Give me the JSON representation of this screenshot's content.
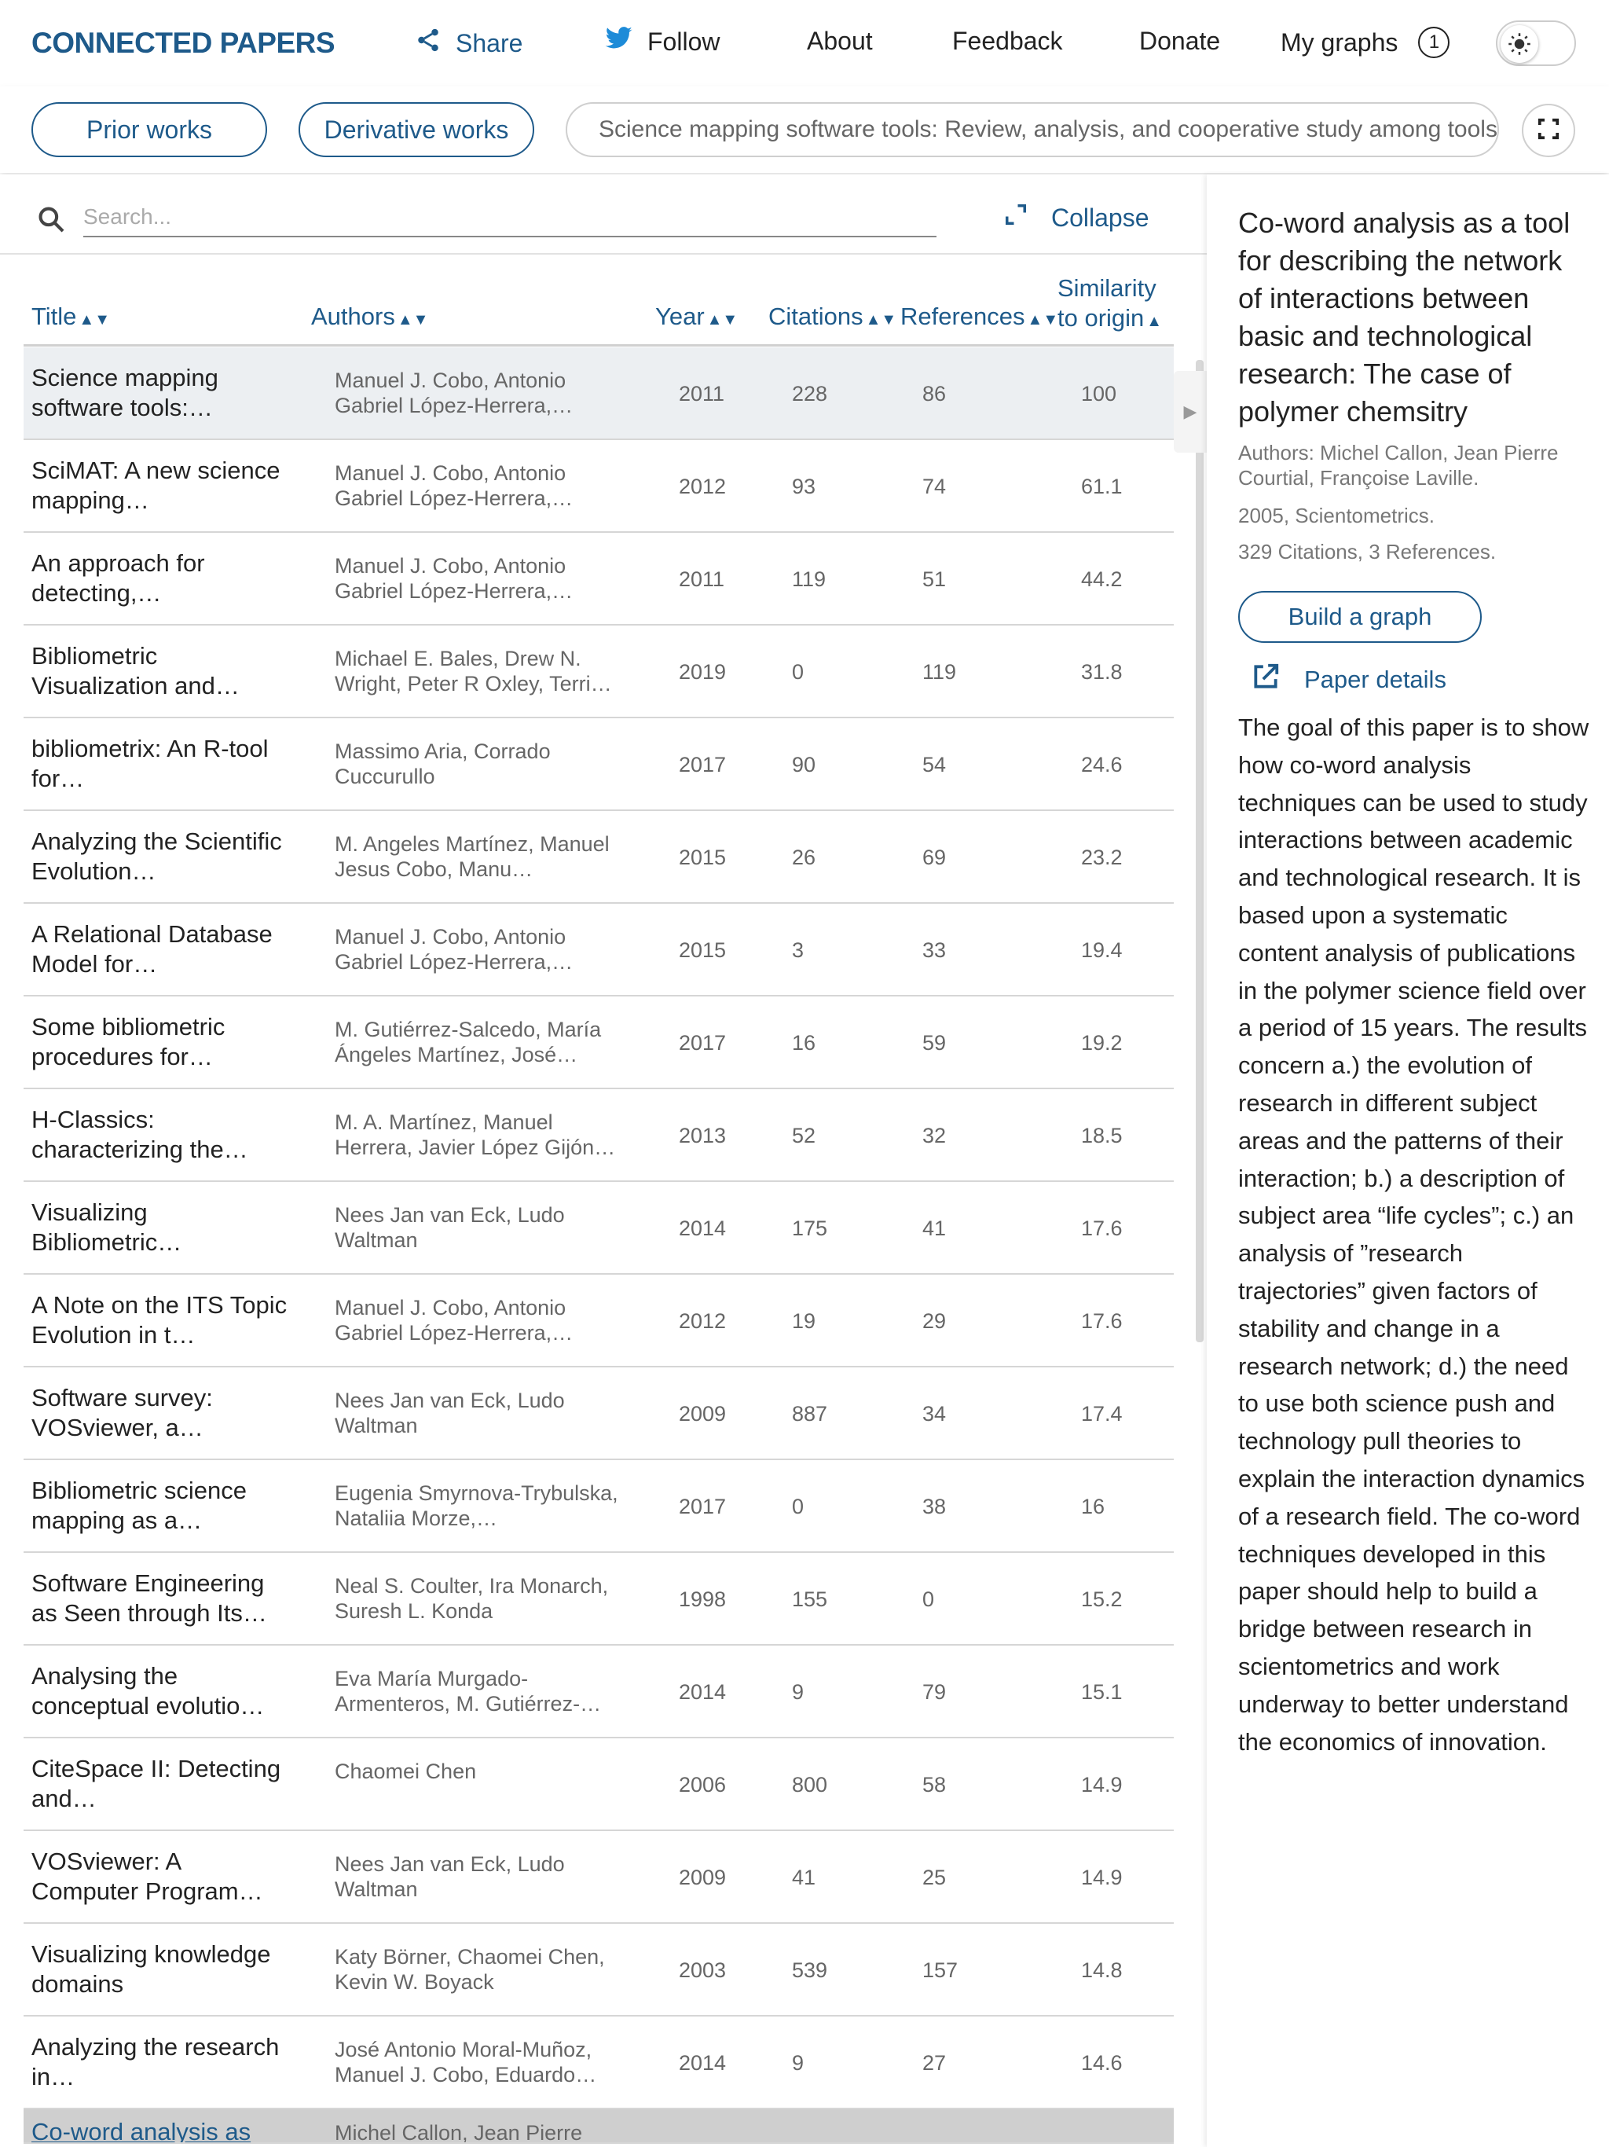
{
  "app": {
    "logo": "CONNECTED PAPERS",
    "nav": {
      "share": "Share",
      "follow": "Follow",
      "about": "About",
      "feedback": "Feedback",
      "donate": "Donate",
      "my_graphs": "My graphs",
      "my_graphs_count": "1"
    },
    "theme_icon": "sun-icon"
  },
  "toolbar": {
    "prior_works": "Prior works",
    "derivative_works": "Derivative works",
    "origin_paper": "Science mapping software tools: Review, analysis, and cooperative study among tools"
  },
  "list": {
    "search_placeholder": "Search...",
    "collapse_label": "Collapse",
    "headers": {
      "title": "Title",
      "authors": "Authors",
      "year": "Year",
      "citations": "Citations",
      "references": "References",
      "similarity_line1": "Similarity",
      "similarity_line2": "to origin"
    },
    "rows": [
      {
        "title": "Science mapping software tools:…",
        "authors": "Manuel J. Cobo, Antonio Gabriel López-Herrera,…",
        "year": "2011",
        "citations": "228",
        "references": "86",
        "similarity": "100"
      },
      {
        "title": "SciMAT: A new science mapping…",
        "authors": "Manuel J. Cobo, Antonio Gabriel López-Herrera,…",
        "year": "2012",
        "citations": "93",
        "references": "74",
        "similarity": "61.1"
      },
      {
        "title": "An approach for detecting,…",
        "authors": "Manuel J. Cobo, Antonio Gabriel López-Herrera,…",
        "year": "2011",
        "citations": "119",
        "references": "51",
        "similarity": "44.2"
      },
      {
        "title": "Bibliometric Visualization and…",
        "authors": "Michael E. Bales, Drew N. Wright, Peter R Oxley, Terri…",
        "year": "2019",
        "citations": "0",
        "references": "119",
        "similarity": "31.8"
      },
      {
        "title": "bibliometrix: An R-tool for…",
        "authors": "Massimo Aria, Corrado Cuccurullo",
        "year": "2017",
        "citations": "90",
        "references": "54",
        "similarity": "24.6"
      },
      {
        "title": "Analyzing the Scientific Evolution…",
        "authors": "M. Angeles Martínez, Manuel Jesus Cobo, Manu…",
        "year": "2015",
        "citations": "26",
        "references": "69",
        "similarity": "23.2"
      },
      {
        "title": "A Relational Database Model for…",
        "authors": "Manuel J. Cobo, Antonio Gabriel López-Herrera,…",
        "year": "2015",
        "citations": "3",
        "references": "33",
        "similarity": "19.4"
      },
      {
        "title": "Some bibliometric procedures for…",
        "authors": "M. Gutiérrez-Salcedo, María Ángeles Martínez, José…",
        "year": "2017",
        "citations": "16",
        "references": "59",
        "similarity": "19.2"
      },
      {
        "title": "H-Classics: characterizing the…",
        "authors": "M. A. Martínez, Manuel Herrera, Javier López Gijón…",
        "year": "2013",
        "citations": "52",
        "references": "32",
        "similarity": "18.5"
      },
      {
        "title": "Visualizing Bibliometric…",
        "authors": "Nees Jan van Eck, Ludo Waltman",
        "year": "2014",
        "citations": "175",
        "references": "41",
        "similarity": "17.6"
      },
      {
        "title": "A Note on the ITS Topic Evolution in t…",
        "authors": "Manuel J. Cobo, Antonio Gabriel López-Herrera,…",
        "year": "2012",
        "citations": "19",
        "references": "29",
        "similarity": "17.6"
      },
      {
        "title": "Software survey: VOSviewer, a…",
        "authors": "Nees Jan van Eck, Ludo Waltman",
        "year": "2009",
        "citations": "887",
        "references": "34",
        "similarity": "17.4"
      },
      {
        "title": "Bibliometric science mapping as a…",
        "authors": "Eugenia Smyrnova-Trybulska, Nataliia Morze,…",
        "year": "2017",
        "citations": "0",
        "references": "38",
        "similarity": "16"
      },
      {
        "title": "Software Engineering as Seen through Its…",
        "authors": "Neal S. Coulter, Ira Monarch, Suresh L. Konda",
        "year": "1998",
        "citations": "155",
        "references": "0",
        "similarity": "15.2"
      },
      {
        "title": "Analysing the conceptual evolutio…",
        "authors": "Eva María Murgado-Armenteros, M. Gutiérrez-…",
        "year": "2014",
        "citations": "9",
        "references": "79",
        "similarity": "15.1"
      },
      {
        "title": "CiteSpace II: Detecting and…",
        "authors": "Chaomei Chen",
        "year": "2006",
        "citations": "800",
        "references": "58",
        "similarity": "14.9"
      },
      {
        "title": "VOSviewer: A Computer Program…",
        "authors": "Nees Jan van Eck, Ludo Waltman",
        "year": "2009",
        "citations": "41",
        "references": "25",
        "similarity": "14.9"
      },
      {
        "title": "Visualizing knowledge domains",
        "authors": "Katy Börner, Chaomei Chen, Kevin W. Boyack",
        "year": "2003",
        "citations": "539",
        "references": "157",
        "similarity": "14.8"
      },
      {
        "title": "Analyzing the research in…",
        "authors": "José Antonio Moral-Muñoz, Manuel J. Cobo, Eduardo…",
        "year": "2014",
        "citations": "9",
        "references": "27",
        "similarity": "14.6"
      }
    ],
    "partial_row": {
      "title": "Co-word analysis as",
      "authors": "Michel Callon, Jean Pierre"
    }
  },
  "detail": {
    "title": "Co-word analysis as a tool for describing the network of interactions between basic and technological research: The case of polymer chemsitry",
    "authors": "Authors: Michel Callon, Jean Pierre Courtial, Françoise Laville.",
    "year_venue": "2005, Scientometrics.",
    "counts": "329 Citations, 3 References.",
    "build_graph": "Build a graph",
    "paper_details": "Paper details",
    "abstract": "The goal of this paper is to show how co-word analysis techniques can be used to study interactions between academic and technological research. It is based upon a systematic content analysis of publications in the polymer science field over a period of 15 years. The results concern a.) the evolution of research in different subject areas and the patterns of their interaction; b.) a description of subject area “life cycles”; c.) an analysis of ”research trajectories” given factors of stability and change in a research network; d.) the need to use both science push and technology pull theories to explain the interaction dynamics of a research field. The co-word techniques developed in this paper should help to build a bridge between research in scientometrics and work underway to better understand the economics of innovation."
  },
  "colors": {
    "brand": "#1e5a8a",
    "twitter": "#1d8bd8",
    "selected_row": "#eceff2"
  }
}
